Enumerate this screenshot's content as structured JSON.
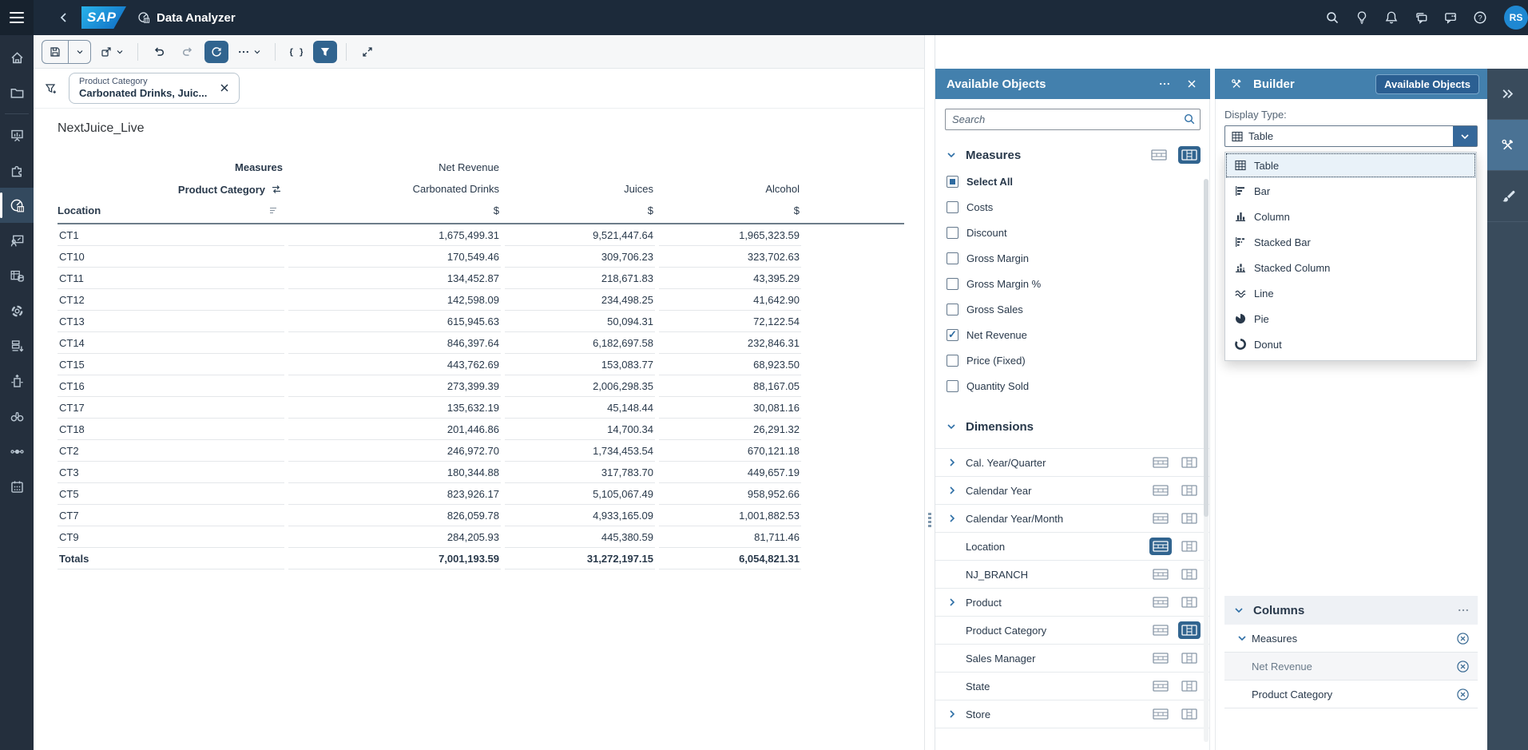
{
  "topbar": {
    "logo_text": "SAP",
    "title": "Data Analyzer",
    "avatar_initials": "RS",
    "icons": [
      "search-icon",
      "lightbulb-icon",
      "bell-icon",
      "chat-icon",
      "feedback-icon",
      "help-icon"
    ]
  },
  "sidebar": {
    "items": [
      {
        "icon": "home-icon"
      },
      {
        "icon": "folder-icon"
      },
      {
        "icon": "divider"
      },
      {
        "icon": "presentation-chart-icon"
      },
      {
        "icon": "puzzle-icon"
      },
      {
        "icon": "gauge-chart-icon",
        "active": true
      },
      {
        "icon": "person-whiteboard-icon"
      },
      {
        "icon": "table-database-icon"
      },
      {
        "icon": "gear-icon"
      },
      {
        "icon": "list-download-icon"
      },
      {
        "icon": "building-arrows-icon"
      },
      {
        "icon": "binoculars-icon"
      },
      {
        "icon": "linked-nodes-icon"
      },
      {
        "icon": "calendar-icon"
      }
    ]
  },
  "toolbar": {
    "buttons": [
      {
        "type": "split",
        "icon": "save-icon",
        "name": "save-button"
      },
      {
        "icon": "share-icon",
        "chevron": true,
        "name": "export-button"
      },
      {
        "type": "sep"
      },
      {
        "icon": "undo-icon",
        "name": "undo-button"
      },
      {
        "icon": "redo-icon",
        "muted": true,
        "name": "redo-button"
      },
      {
        "icon": "refresh-icon",
        "active": true,
        "name": "refresh-button"
      },
      {
        "icon": "ellipsis-icon",
        "chevron": true,
        "name": "more-actions-button"
      },
      {
        "type": "sep"
      },
      {
        "icon": "braces-icon",
        "name": "formula-button"
      },
      {
        "icon": "filter-icon",
        "active": true,
        "name": "filter-button"
      },
      {
        "type": "sep"
      },
      {
        "icon": "expand-icon",
        "name": "fullscreen-button"
      }
    ]
  },
  "filter": {
    "chip": {
      "title": "Product Category",
      "value": "Carbonated Drinks, Juic..."
    }
  },
  "table": {
    "title": "NextJuice_Live",
    "header": {
      "measures_label": "Measures",
      "measure_name": "Net Revenue",
      "dimension_label": "Product Category",
      "row_dim_label": "Location",
      "columns": [
        "Carbonated Drinks",
        "Juices",
        "Alcohol"
      ],
      "unit": "$"
    },
    "rows": [
      {
        "location": "CT1",
        "values": [
          "1,675,499.31",
          "9,521,447.64",
          "1,965,323.59"
        ]
      },
      {
        "location": "CT10",
        "values": [
          "170,549.46",
          "309,706.23",
          "323,702.63"
        ]
      },
      {
        "location": "CT11",
        "values": [
          "134,452.87",
          "218,671.83",
          "43,395.29"
        ]
      },
      {
        "location": "CT12",
        "values": [
          "142,598.09",
          "234,498.25",
          "41,642.90"
        ]
      },
      {
        "location": "CT13",
        "values": [
          "615,945.63",
          "50,094.31",
          "72,122.54"
        ]
      },
      {
        "location": "CT14",
        "values": [
          "846,397.64",
          "6,182,697.58",
          "232,846.31"
        ]
      },
      {
        "location": "CT15",
        "values": [
          "443,762.69",
          "153,083.77",
          "68,923.50"
        ]
      },
      {
        "location": "CT16",
        "values": [
          "273,399.39",
          "2,006,298.35",
          "88,167.05"
        ]
      },
      {
        "location": "CT17",
        "values": [
          "135,632.19",
          "45,148.44",
          "30,081.16"
        ]
      },
      {
        "location": "CT18",
        "values": [
          "201,446.86",
          "14,700.34",
          "26,291.32"
        ]
      },
      {
        "location": "CT2",
        "values": [
          "246,972.70",
          "1,734,453.54",
          "670,121.18"
        ]
      },
      {
        "location": "CT3",
        "values": [
          "180,344.88",
          "317,783.70",
          "449,657.19"
        ]
      },
      {
        "location": "CT5",
        "values": [
          "823,926.17",
          "5,105,067.49",
          "958,952.66"
        ]
      },
      {
        "location": "CT7",
        "values": [
          "826,059.78",
          "4,933,165.09",
          "1,001,882.53"
        ]
      },
      {
        "location": "CT9",
        "values": [
          "284,205.93",
          "445,380.59",
          "81,711.46"
        ]
      }
    ],
    "totals": {
      "location": "Totals",
      "values": [
        "7,001,193.59",
        "31,272,197.15",
        "6,054,821.31"
      ]
    }
  },
  "available_objects": {
    "title": "Available Objects",
    "search_placeholder": "Search",
    "measures": {
      "label": "Measures",
      "rows_active": false,
      "cols_active": true,
      "items": [
        {
          "label": "Select All",
          "state": "mixed",
          "bold": true
        },
        {
          "label": "Costs",
          "state": "unchecked"
        },
        {
          "label": "Discount",
          "state": "unchecked"
        },
        {
          "label": "Gross Margin",
          "state": "unchecked"
        },
        {
          "label": "Gross Margin %",
          "state": "unchecked"
        },
        {
          "label": "Gross Sales",
          "state": "unchecked"
        },
        {
          "label": "Net Revenue",
          "state": "checked"
        },
        {
          "label": "Price (Fixed)",
          "state": "unchecked"
        },
        {
          "label": "Quantity Sold",
          "state": "unchecked"
        }
      ]
    },
    "dimensions": {
      "label": "Dimensions",
      "items": [
        {
          "label": "Cal. Year/Quarter",
          "expandable": true,
          "rows_active": false,
          "cols_active": false
        },
        {
          "label": "Calendar Year",
          "expandable": true,
          "rows_active": false,
          "cols_active": false
        },
        {
          "label": "Calendar Year/Month",
          "expandable": true,
          "rows_active": false,
          "cols_active": false
        },
        {
          "label": "Location",
          "expandable": false,
          "rows_active": true,
          "cols_active": false
        },
        {
          "label": "NJ_BRANCH",
          "expandable": false,
          "rows_active": false,
          "cols_active": false
        },
        {
          "label": "Product",
          "expandable": true,
          "rows_active": false,
          "cols_active": false
        },
        {
          "label": "Product Category",
          "expandable": false,
          "rows_active": false,
          "cols_active": true
        },
        {
          "label": "Sales Manager",
          "expandable": false,
          "rows_active": false,
          "cols_active": false
        },
        {
          "label": "State",
          "expandable": false,
          "rows_active": false,
          "cols_active": false
        },
        {
          "label": "Store",
          "expandable": true,
          "rows_active": false,
          "cols_active": false
        }
      ]
    }
  },
  "builder": {
    "title": "Builder",
    "available_objects_button": "Available Objects",
    "display_type_label": "Display Type:",
    "selected_display_type": "Table",
    "display_type_options": [
      {
        "label": "Table",
        "icon": "table-chart-icon",
        "selected": true
      },
      {
        "label": "Bar",
        "icon": "bar-chart-icon"
      },
      {
        "label": "Column",
        "icon": "column-chart-icon"
      },
      {
        "label": "Stacked Bar",
        "icon": "stacked-bar-chart-icon"
      },
      {
        "label": "Stacked Column",
        "icon": "stacked-column-chart-icon"
      },
      {
        "label": "Line",
        "icon": "line-chart-icon"
      },
      {
        "label": "Pie",
        "icon": "pie-chart-icon"
      },
      {
        "label": "Donut",
        "icon": "donut-chart-icon"
      }
    ],
    "columns_section": {
      "label": "Columns",
      "groups": [
        {
          "label": "Measures",
          "expandable": true,
          "children": [
            "Net Revenue"
          ]
        },
        {
          "label": "Product Category",
          "expandable": false,
          "children": []
        }
      ]
    }
  },
  "rail": {
    "items": [
      {
        "icon": "double-chevron-right-icon",
        "name": "collapse-panel-button"
      },
      {
        "icon": "tools-icon",
        "active": true,
        "name": "builder-tab"
      },
      {
        "icon": "paintbrush-icon",
        "name": "styling-tab"
      }
    ]
  },
  "colors": {
    "topbar_bg": "#1c2a3a",
    "sidebar_bg": "#242f3d",
    "panel_header_bg": "#4380ad",
    "active_btn_bg": "#31648f",
    "accent": "#2d6ea5",
    "avatar_bg": "#1f88d2",
    "rail_bg": "#394b5c",
    "rail_active_bg": "#4a7294",
    "selected_row_bg": "#e9f2f9"
  }
}
